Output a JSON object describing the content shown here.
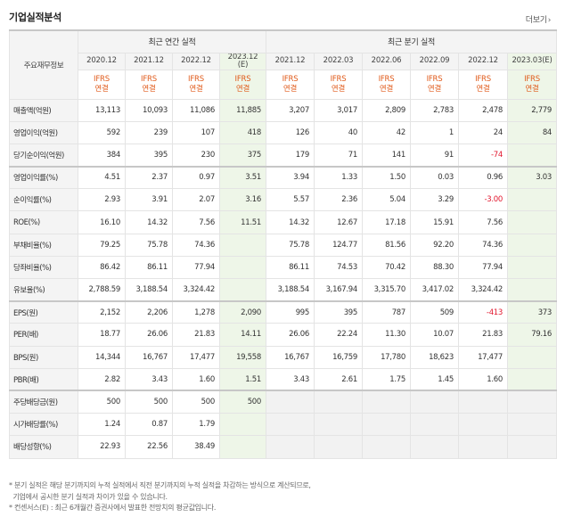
{
  "header": {
    "title": "기업실적분석",
    "more_label": "더보기",
    "more_icon": "chevron-right-icon"
  },
  "table": {
    "corner_label": "주요재무정보",
    "annual_group_label": "최근 연간 실적",
    "quarter_group_label": "최근 분기 실적",
    "annual_periods": [
      "2020.12",
      "2021.12",
      "2022.12",
      "2023.12"
    ],
    "annual_est_suffix": "(E)",
    "quarter_periods": [
      "2021.12",
      "2022.03",
      "2022.06",
      "2022.09",
      "2022.12",
      "2023.03"
    ],
    "quarter_est_suffix": "(E)",
    "ifrs_top": "IFRS",
    "ifrs_bottom": "연결",
    "rows": [
      {
        "label": "매출액(억원)",
        "annual": [
          "13,113",
          "10,093",
          "11,086",
          "11,885"
        ],
        "quarter": [
          "3,207",
          "3,017",
          "2,809",
          "2,783",
          "2,478",
          "2,779"
        ]
      },
      {
        "label": "영업이익(억원)",
        "annual": [
          "592",
          "239",
          "107",
          "418"
        ],
        "quarter": [
          "126",
          "40",
          "42",
          "1",
          "24",
          "84"
        ]
      },
      {
        "label": "당기순이익(억원)",
        "annual": [
          "384",
          "395",
          "230",
          "375"
        ],
        "quarter": [
          "179",
          "71",
          "141",
          "91",
          "-74",
          ""
        ]
      },
      {
        "label": "영업이익률(%)",
        "annual": [
          "4.51",
          "2.37",
          "0.97",
          "3.51"
        ],
        "quarter": [
          "3.94",
          "1.33",
          "1.50",
          "0.03",
          "0.96",
          "3.03"
        ]
      },
      {
        "label": "순이익률(%)",
        "annual": [
          "2.93",
          "3.91",
          "2.07",
          "3.16"
        ],
        "quarter": [
          "5.57",
          "2.36",
          "5.04",
          "3.29",
          "-3.00",
          ""
        ]
      },
      {
        "label": "ROE(%)",
        "annual": [
          "16.10",
          "14.32",
          "7.56",
          "11.51"
        ],
        "quarter": [
          "14.32",
          "12.67",
          "17.18",
          "15.91",
          "7.56",
          ""
        ]
      },
      {
        "label": "부채비율(%)",
        "annual": [
          "79.25",
          "75.78",
          "74.36",
          ""
        ],
        "quarter": [
          "75.78",
          "124.77",
          "81.56",
          "92.20",
          "74.36",
          ""
        ]
      },
      {
        "label": "당좌비율(%)",
        "annual": [
          "86.42",
          "86.11",
          "77.94",
          ""
        ],
        "quarter": [
          "86.11",
          "74.53",
          "70.42",
          "88.30",
          "77.94",
          ""
        ]
      },
      {
        "label": "유보율(%)",
        "annual": [
          "2,788.59",
          "3,188.54",
          "3,324.42",
          ""
        ],
        "quarter": [
          "3,188.54",
          "3,167.94",
          "3,315.70",
          "3,417.02",
          "3,324.42",
          ""
        ]
      },
      {
        "label": "EPS(원)",
        "annual": [
          "2,152",
          "2,206",
          "1,278",
          "2,090"
        ],
        "quarter": [
          "995",
          "395",
          "787",
          "509",
          "-413",
          "373"
        ]
      },
      {
        "label": "PER(배)",
        "annual": [
          "18.77",
          "26.06",
          "21.83",
          "14.11"
        ],
        "quarter": [
          "26.06",
          "22.24",
          "11.30",
          "10.07",
          "21.83",
          "79.16"
        ]
      },
      {
        "label": "BPS(원)",
        "annual": [
          "14,344",
          "16,767",
          "17,477",
          "19,558"
        ],
        "quarter": [
          "16,767",
          "16,759",
          "17,780",
          "18,623",
          "17,477",
          ""
        ]
      },
      {
        "label": "PBR(배)",
        "annual": [
          "2.82",
          "3.43",
          "1.60",
          "1.51"
        ],
        "quarter": [
          "3.43",
          "2.61",
          "1.75",
          "1.45",
          "1.60",
          ""
        ]
      },
      {
        "label": "주당배당금(원)",
        "annual": [
          "500",
          "500",
          "500",
          "500"
        ],
        "quarter": [
          "",
          "",
          "",
          "",
          "",
          ""
        ]
      },
      {
        "label": "시가배당률(%)",
        "annual": [
          "1.24",
          "0.87",
          "1.79",
          ""
        ],
        "quarter": [
          "",
          "",
          "",
          "",
          "",
          ""
        ]
      },
      {
        "label": "배당성향(%)",
        "annual": [
          "22.93",
          "22.56",
          "38.49",
          ""
        ],
        "quarter": [
          "",
          "",
          "",
          "",
          "",
          ""
        ]
      }
    ]
  },
  "notes": [
    "* 분기 실적은 해당 분기까지의 누적 실적에서 직전 분기까지의 누적 실적을 차감하는 방식으로 계산되므로,",
    "  기업에서 공시한 분기 실적과 차이가 있을 수 있습니다.",
    "* 컨센서스(E) : 최근 6개월간 증권사에서 발표한 전망치의 평균값입니다."
  ],
  "colors": {
    "ifrs": "#e05a1a",
    "negative": "#e2162d",
    "estimate_bg": "#eef6e8",
    "header_bg": "#f4f4f4"
  }
}
